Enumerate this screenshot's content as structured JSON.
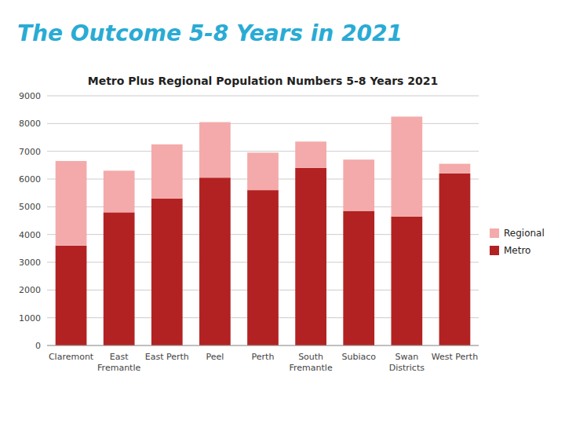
{
  "chart_data": {
    "type": "bar",
    "stacked": true,
    "title": "The Outcome 5-8 Years in 2021",
    "subtitle": "Metro Plus Regional Population Numbers 5-8 Years 2021",
    "categories": [
      "Claremont",
      "East\nFremantle",
      "East Perth",
      "Peel",
      "Perth",
      "South\nFremantle",
      "Subiaco",
      "Swan\nDistricts",
      "West Perth"
    ],
    "series": [
      {
        "name": "Metro",
        "color": "#B22222",
        "values": [
          3600,
          4800,
          5300,
          6050,
          5600,
          6400,
          4850,
          4650,
          6200
        ]
      },
      {
        "name": "Regional",
        "color": "#F4AAAA",
        "values": [
          3050,
          1500,
          1950,
          2000,
          1350,
          950,
          1850,
          3600,
          350
        ]
      }
    ],
    "ylim": [
      0,
      9000
    ],
    "yticks": [
      0,
      1000,
      2000,
      3000,
      4000,
      5000,
      6000,
      7000,
      8000,
      9000
    ],
    "grid": true,
    "legend": "right"
  }
}
